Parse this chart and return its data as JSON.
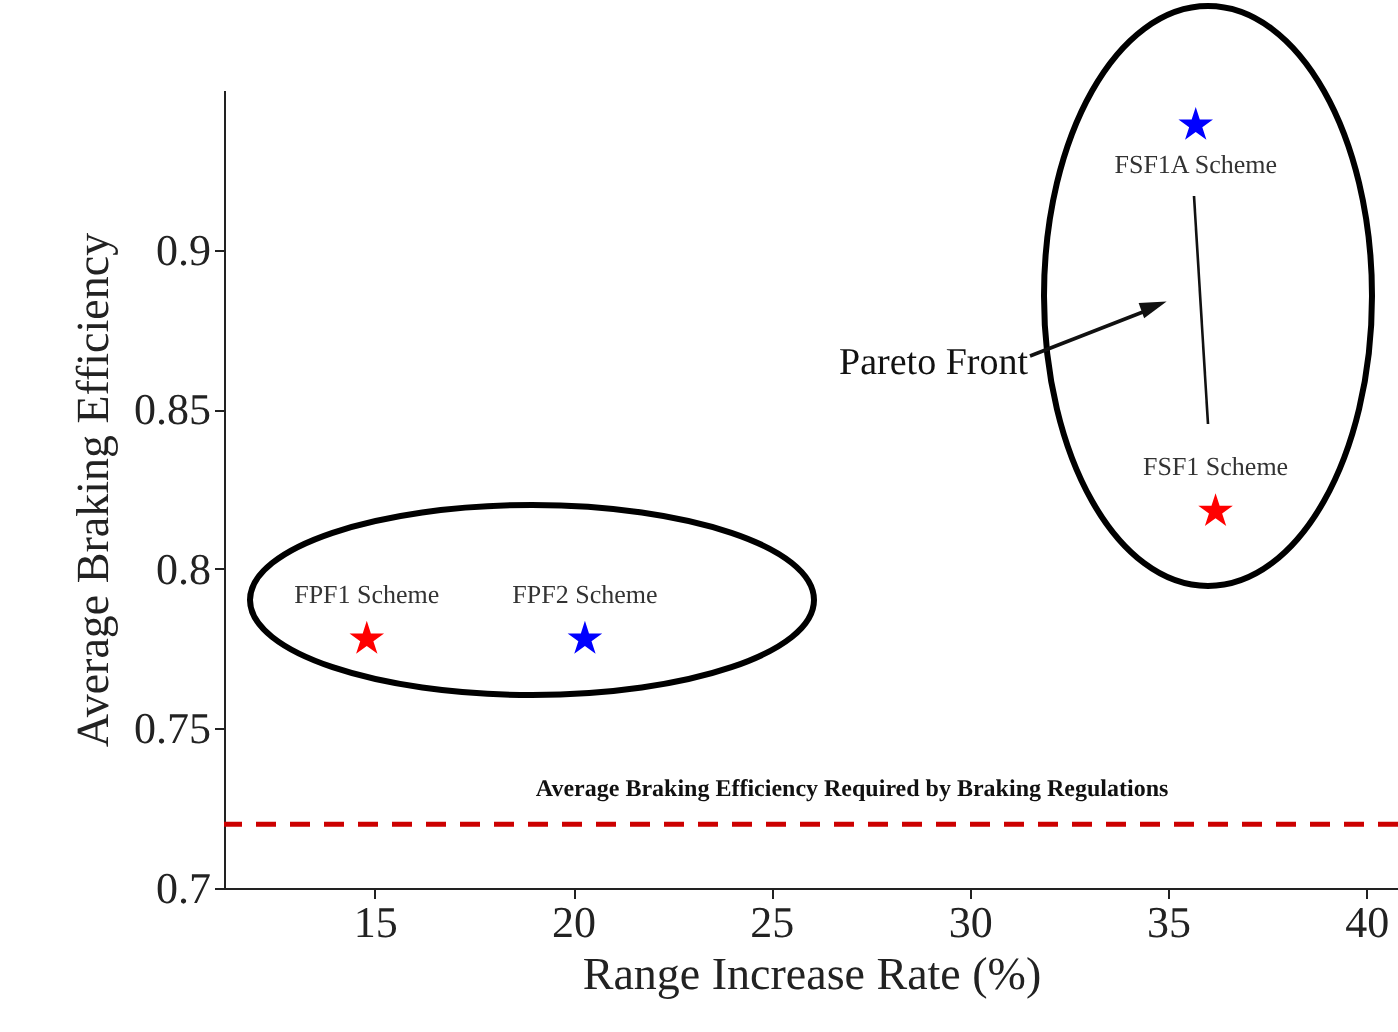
{
  "chart_data": {
    "type": "scatter",
    "xlabel": "Range Increase Rate (%)",
    "ylabel": "Average Braking Efficiency",
    "series": [
      {
        "color": "#ff0000",
        "x": [
          14.8,
          36.2
        ],
        "values": [
          0.778,
          0.818
        ]
      },
      {
        "color": "#0000ff",
        "x": [
          20.3,
          35.7
        ],
        "values": [
          0.778,
          0.939
        ]
      }
    ],
    "marker": "star",
    "xlim": [
      11.2,
      40.8
    ],
    "xticks": [
      15,
      20,
      25,
      30,
      35,
      40
    ],
    "ylim": [
      0.7,
      0.95
    ],
    "yticks": [
      0.7,
      0.75,
      0.8,
      0.85,
      0.9
    ],
    "grid": false,
    "ref_lines": [
      {
        "axis": "y",
        "value": 0.72,
        "label": "Average Braking Efficiency Required by Braking Regulations",
        "color": "#cc0000",
        "line_style": "dashed"
      }
    ],
    "annotations": [
      {
        "text": "FPF1 Scheme",
        "x": 14.8,
        "y": 0.778
      },
      {
        "text": "FPF2 Scheme",
        "x": 20.3,
        "y": 0.778
      },
      {
        "text": "FSF1A Scheme",
        "x": 35.7,
        "y": 0.939
      },
      {
        "text": "FSF1 Scheme",
        "x": 36.2,
        "y": 0.818
      },
      "Pareto Front"
    ]
  }
}
